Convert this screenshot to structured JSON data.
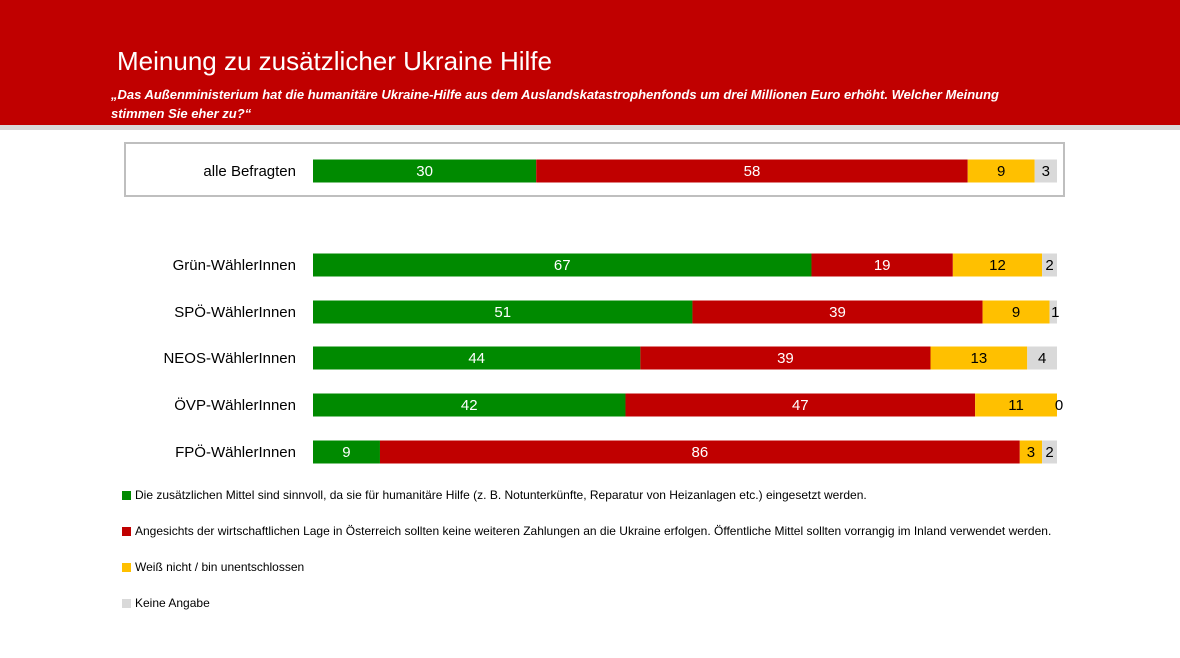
{
  "header": {
    "title": "Meinung zu zusätzlicher Ukraine Hilfe",
    "subtitle": "„Das Außenministerium hat die humanitäre Ukraine-Hilfe aus dem Auslandskatastrophenfonds um drei Millionen Euro erhöht. Welcher Meinung stimmen Sie eher zu?“"
  },
  "colors": {
    "header_bg": "#c00000",
    "green": "#008a00",
    "red": "#c00000",
    "yellow": "#ffc000",
    "gray": "#d9d9d9"
  },
  "chart_data": {
    "type": "bar",
    "orientation": "horizontal",
    "stacked": true,
    "percent_stacked": true,
    "categories": [
      "alle Befragten",
      "Grün-WählerInnen",
      "SPÖ-WählerInnen",
      "NEOS-WählerInnen",
      "ÖVP-WählerInnen",
      "FPÖ-WählerInnen"
    ],
    "series": [
      {
        "name": "Die zusätzlichen Mittel sind sinnvoll, da sie für humanitäre Hilfe (z. B. Notunterkünfte, Reparatur von Heizanlagen etc.) eingesetzt werden.",
        "color": "#008a00",
        "values": [
          30,
          67,
          51,
          44,
          42,
          9
        ]
      },
      {
        "name": "Angesichts der wirtschaftlichen Lage in Österreich sollten keine weiteren Zahlungen an die Ukraine erfolgen. Öffentliche Mittel sollten vorrangig im Inland verwendet werden.",
        "color": "#c00000",
        "values": [
          58,
          19,
          39,
          39,
          47,
          86
        ]
      },
      {
        "name": "Weiß nicht / bin unentschlossen",
        "color": "#ffc000",
        "values": [
          9,
          12,
          9,
          13,
          11,
          3
        ]
      },
      {
        "name": "Keine Angabe",
        "color": "#d9d9d9",
        "values": [
          3,
          2,
          1,
          4,
          0,
          2
        ]
      }
    ],
    "legend_position": "bottom-left",
    "grid": false
  }
}
